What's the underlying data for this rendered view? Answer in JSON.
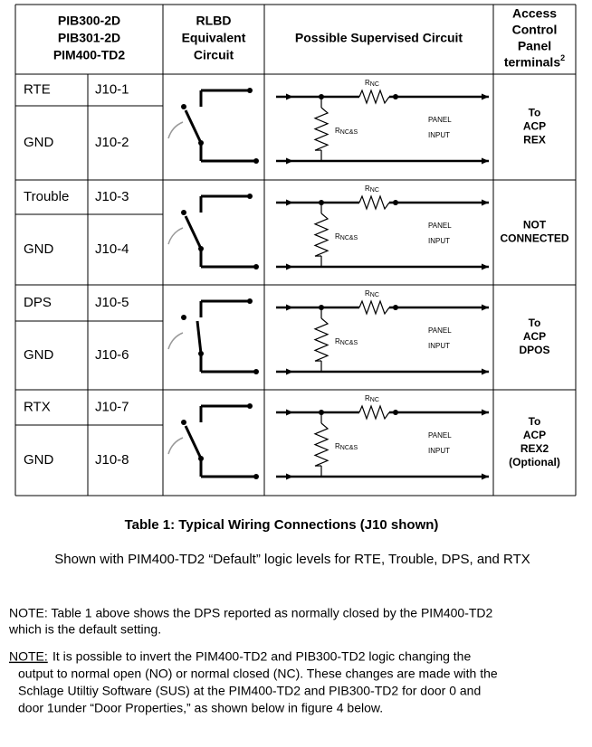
{
  "table": {
    "headers": [
      [
        "PIB300-2D",
        "PIB301-2D",
        "PIM400-TD2"
      ],
      [
        "RLBD",
        "Equivalent",
        "Circuit"
      ],
      [
        "Possible Supervised Circuit"
      ],
      [
        "Access",
        "Control",
        "Panel",
        "terminals"
      ]
    ],
    "header_superscript": "2",
    "groups": [
      {
        "signal": "RTE",
        "signal_pin": "J10-1",
        "ground": "GND",
        "ground_pin": "J10-2",
        "panel": [
          "To",
          "ACP",
          "REX"
        ]
      },
      {
        "signal": "Trouble",
        "signal_pin": "J10-3",
        "ground": "GND",
        "ground_pin": "J10-4",
        "panel": [
          "NOT",
          "CONNECTED"
        ]
      },
      {
        "signal": "DPS",
        "signal_pin": "J10-5",
        "ground": "GND",
        "ground_pin": "J10-6",
        "panel": [
          "To",
          "ACP",
          "DPOS"
        ]
      },
      {
        "signal": "RTX",
        "signal_pin": "J10-7",
        "ground": "GND",
        "ground_pin": "J10-8",
        "panel": [
          "To",
          "ACP",
          "REX2",
          "(Optional)"
        ]
      }
    ],
    "circuit_labels": {
      "r": "R",
      "nc": "NC",
      "ncs": "NC&S",
      "panel": "PANEL",
      "input": "INPUT"
    }
  },
  "caption": "Table 1: Typical Wiring Connections (J10 shown)",
  "subcaption": "Shown with PIM400-TD2 “Default” logic levels for RTE, Trouble, DPS, and RTX",
  "notes": [
    {
      "lines": [
        "NOTE: Table 1 above shows the DPS reported as normally closed by the PIM400-TD2",
        "which is the default setting."
      ]
    },
    {
      "label": "NOTE:",
      "lines": [
        "It is possible to invert the PIM400-TD2 and PIB300-TD2 logic changing the",
        "output to normal open (NO) or normal closed (NC). These changes are made with the",
        "Schlage Utiltiy Software (SUS) at the PIM400-TD2 and PIB300-TD2 for door 0 and",
        "door 1under “Door Properties,” as shown below in figure 4 below."
      ]
    }
  ]
}
